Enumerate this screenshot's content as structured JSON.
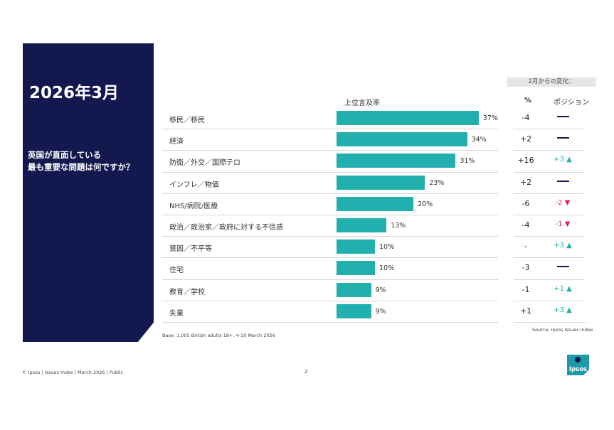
{
  "panel": {
    "date": "2026年3月",
    "question_line1": "英国が直面している",
    "question_line2": "最も重要な問題は何ですか？"
  },
  "headers": {
    "mention_rate": "上位言及率",
    "change_group": "2月からの変化：",
    "percent": "%",
    "position": "ポジション"
  },
  "colors": {
    "bar": "#21b0ad",
    "panel": "#13194f",
    "up": "#21b0ad",
    "down": "#e0245e"
  },
  "chart_data": {
    "type": "bar",
    "orientation": "horizontal",
    "ylabel": "上位言及率",
    "categories": [
      "移民／移民",
      "経済",
      "防衛／外交／国際テロ",
      "インフレ／物価",
      "NHS/病院/医療",
      "政治／政治家／政府に対する不信感",
      "貧困／不平等",
      "住宅",
      "教育／学校",
      "失業"
    ],
    "values": [
      37,
      34,
      31,
      23,
      20,
      13,
      10,
      10,
      9,
      9
    ],
    "value_labels": [
      "37%",
      "34%",
      "31%",
      "23%",
      "20%",
      "13%",
      "10%",
      "10%",
      "9%",
      "9%"
    ],
    "xlim": [
      0,
      100
    ],
    "grid": false
  },
  "changes": [
    {
      "pct": "-4",
      "position": "",
      "dir": "same"
    },
    {
      "pct": "+2",
      "position": "",
      "dir": "same"
    },
    {
      "pct": "+16",
      "position": "+3 ▲",
      "dir": "up"
    },
    {
      "pct": "+2",
      "position": "",
      "dir": "same"
    },
    {
      "pct": "-6",
      "position": "-2 ▼",
      "dir": "down"
    },
    {
      "pct": "-4",
      "position": "-1 ▼",
      "dir": "down"
    },
    {
      "pct": "-",
      "position": "+3 ▲",
      "dir": "up"
    },
    {
      "pct": "-3",
      "position": "",
      "dir": "same"
    },
    {
      "pct": "-1",
      "position": "+1 ▲",
      "dir": "up"
    },
    {
      "pct": "+1",
      "position": "+3 ▲",
      "dir": "up"
    }
  ],
  "notes": {
    "base": "Base: 1,005 British adults 18+, 4-10 March 2026",
    "source": "Source: Ipsos Issues Index",
    "footer": "© Ipsos | Issues Index | March 2026 | Public",
    "page": "2",
    "logo_text": "Ipsos"
  }
}
